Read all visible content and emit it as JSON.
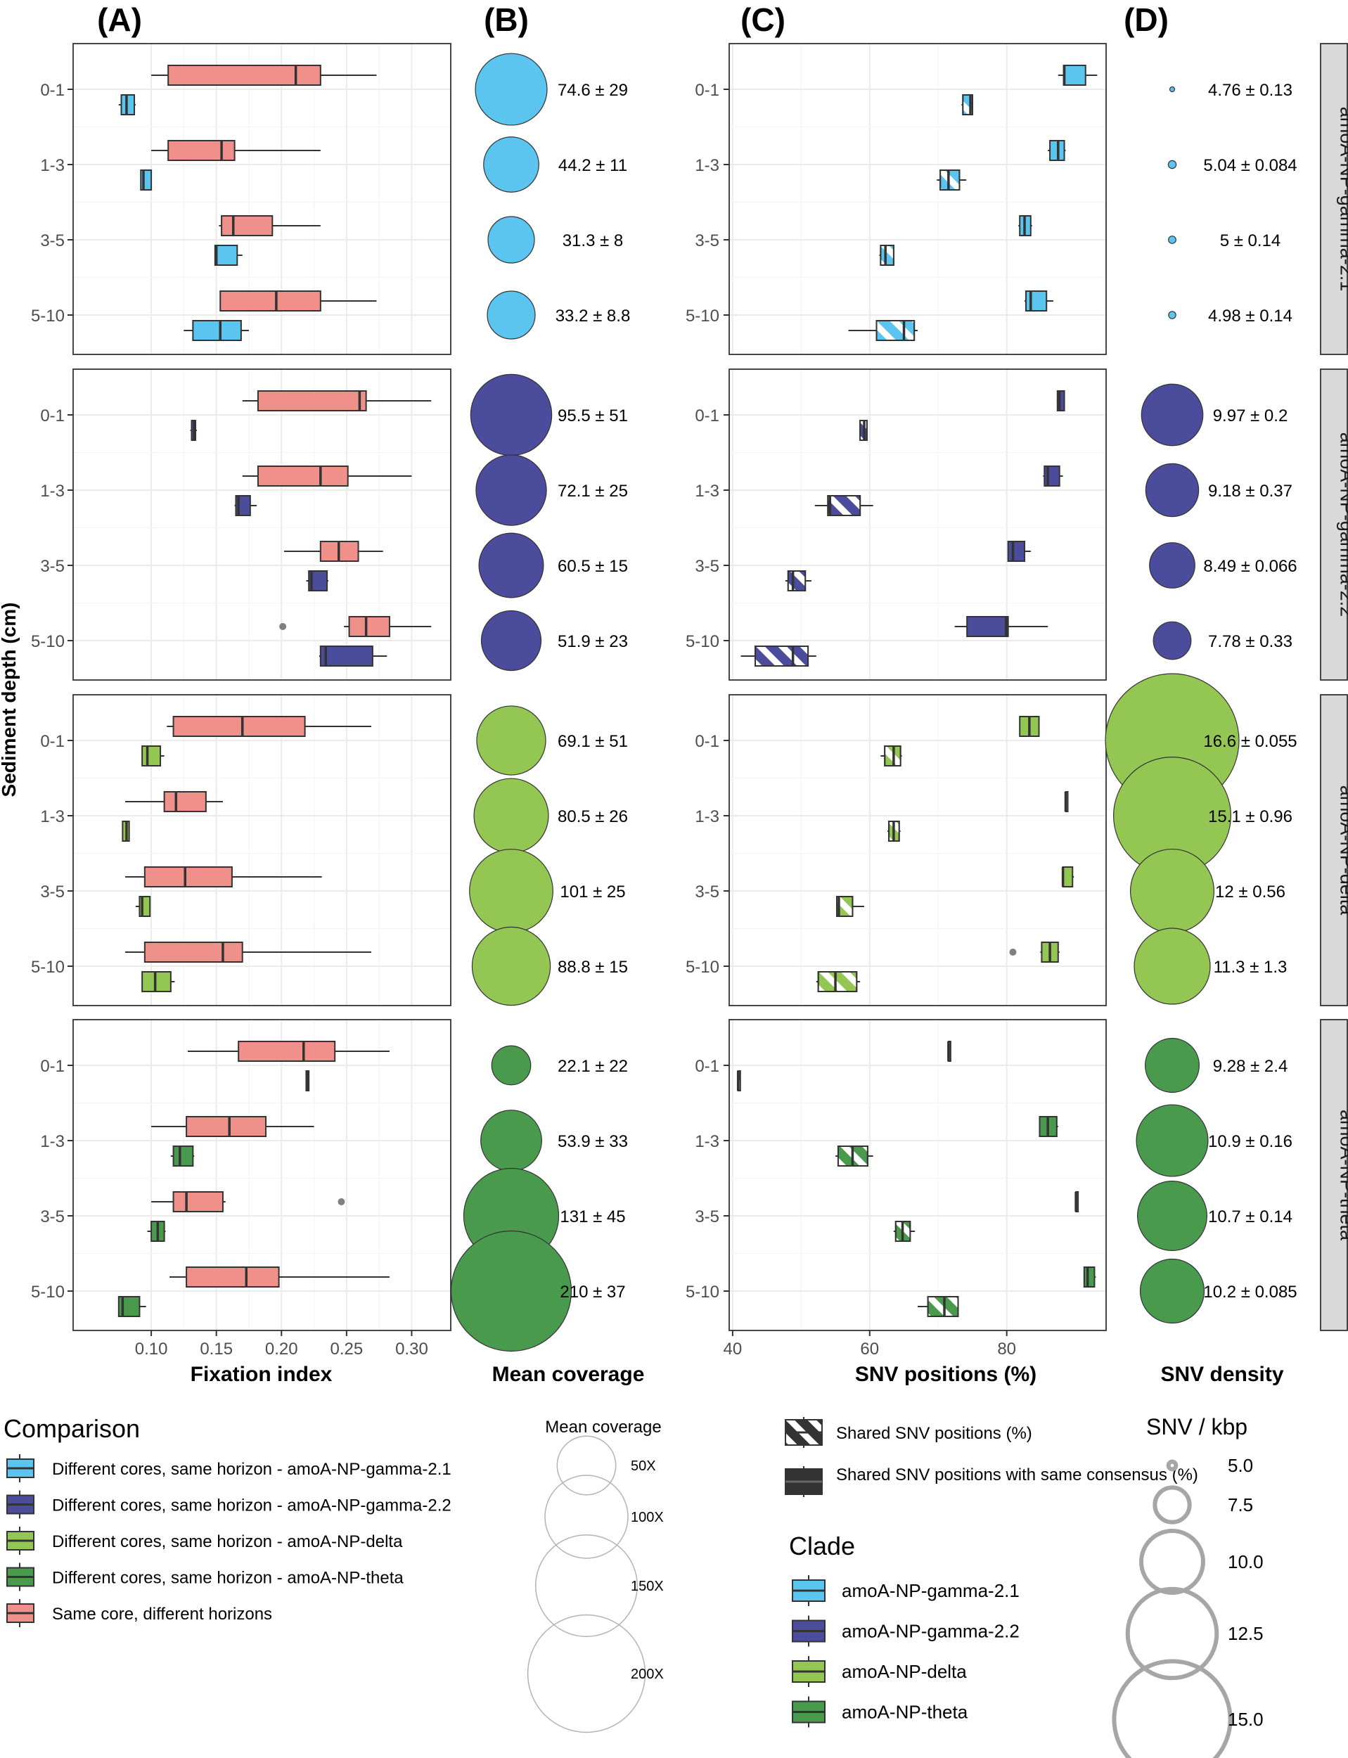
{
  "panel_titles": [
    "(A)",
    "(B)",
    "(C)",
    "(D)"
  ],
  "y_axis_label": "Sediment depth (cm)",
  "depths": [
    "0-1",
    "1-3",
    "3-5",
    "5-10"
  ],
  "clades": [
    {
      "name": "amoA-NP-gamma-2.1",
      "color": "#5BC4EF"
    },
    {
      "name": "amoA-NP-gamma-2.2",
      "color": "#4C4C9C"
    },
    {
      "name": "amoA-NP-delta",
      "color": "#94C653"
    },
    {
      "name": "amoA-NP-theta",
      "color": "#4A9A4E"
    }
  ],
  "same_core_color": "#F0908A",
  "chart_data": [
    {
      "panel": "(A)",
      "type": "box",
      "xlabel": "Fixation index",
      "xlim": [
        0.04,
        0.33
      ],
      "xticks": [
        0.1,
        0.15,
        0.2,
        0.25,
        0.3
      ],
      "xtick_labels": [
        "0.10",
        "0.15",
        "0.20",
        "0.25",
        "0.30"
      ],
      "series_names": [
        "Same core, different horizons",
        "Different cores, same horizon"
      ],
      "facets": [
        {
          "clade": "amoA-NP-gamma-2.1",
          "rows": [
            {
              "depth": "0-1",
              "same": [
                0.1,
                0.113,
                0.211,
                0.23,
                0.273
              ],
              "diff": [
                0.075,
                0.077,
                0.081,
                0.087,
                0.088
              ]
            },
            {
              "depth": "1-3",
              "same": [
                0.1,
                0.113,
                0.154,
                0.164,
                0.23
              ],
              "diff": [
                0.092,
                0.092,
                0.094,
                0.1,
                0.1
              ]
            },
            {
              "depth": "3-5",
              "same": [
                0.152,
                0.154,
                0.163,
                0.193,
                0.23
              ],
              "diff": [
                0.149,
                0.149,
                0.15,
                0.166,
                0.17
              ]
            },
            {
              "depth": "5-10",
              "same": [
                0.153,
                0.153,
                0.196,
                0.23,
                0.273
              ],
              "diff": [
                0.125,
                0.132,
                0.153,
                0.169,
                0.175
              ]
            }
          ]
        },
        {
          "clade": "amoA-NP-gamma-2.2",
          "rows": [
            {
              "depth": "0-1",
              "same": [
                0.17,
                0.182,
                0.26,
                0.265,
                0.315
              ],
              "diff": [
                0.13,
                0.131,
                0.133,
                0.134,
                0.135
              ]
            },
            {
              "depth": "1-3",
              "same": [
                0.17,
                0.182,
                0.23,
                0.251,
                0.3
              ],
              "diff": [
                0.164,
                0.165,
                0.167,
                0.176,
                0.181
              ]
            },
            {
              "depth": "3-5",
              "same": [
                0.202,
                0.23,
                0.244,
                0.259,
                0.278
              ],
              "diff": [
                0.219,
                0.221,
                0.223,
                0.235,
                0.236
              ]
            },
            {
              "depth": "5-10",
              "same": [
                0.248,
                0.252,
                0.265,
                0.283,
                0.315
              ],
              "diff": [
                0.229,
                0.23,
                0.234,
                0.27,
                0.281
              ]
            }
          ],
          "outliers": [
            {
              "depth": "5-10",
              "series": "same",
              "value": 0.201
            }
          ]
        },
        {
          "clade": "amoA-NP-delta",
          "rows": [
            {
              "depth": "0-1",
              "same": [
                0.112,
                0.117,
                0.17,
                0.218,
                0.269
              ],
              "diff": [
                0.093,
                0.093,
                0.097,
                0.107,
                0.11
              ]
            },
            {
              "depth": "1-3",
              "same": [
                0.08,
                0.11,
                0.119,
                0.142,
                0.155
              ],
              "diff": [
                0.078,
                0.078,
                0.081,
                0.083,
                0.083
              ]
            },
            {
              "depth": "3-5",
              "same": [
                0.08,
                0.095,
                0.126,
                0.162,
                0.231
              ],
              "diff": [
                0.088,
                0.091,
                0.093,
                0.099,
                0.099
              ]
            },
            {
              "depth": "5-10",
              "same": [
                0.08,
                0.095,
                0.155,
                0.17,
                0.269
              ],
              "diff": [
                0.093,
                0.093,
                0.103,
                0.115,
                0.118
              ]
            }
          ]
        },
        {
          "clade": "amoA-NP-theta",
          "rows": [
            {
              "depth": "0-1",
              "same": [
                0.128,
                0.167,
                0.217,
                0.241,
                0.283
              ],
              "diff": [
                0.219,
                0.219,
                0.22,
                0.221,
                0.221
              ]
            },
            {
              "depth": "1-3",
              "same": [
                0.1,
                0.127,
                0.16,
                0.188,
                0.225
              ],
              "diff": [
                0.115,
                0.117,
                0.122,
                0.132,
                0.133
              ]
            },
            {
              "depth": "3-5",
              "same": [
                0.1,
                0.117,
                0.127,
                0.155,
                0.157
              ],
              "diff": [
                0.097,
                0.1,
                0.105,
                0.11,
                0.111
              ]
            },
            {
              "depth": "5-10",
              "same": [
                0.114,
                0.127,
                0.173,
                0.198,
                0.283
              ],
              "diff": [
                0.075,
                0.075,
                0.078,
                0.091,
                0.096
              ]
            }
          ],
          "outliers": [
            {
              "depth": "3-5",
              "series": "same",
              "value": 0.246
            }
          ]
        }
      ]
    },
    {
      "panel": "(B)",
      "type": "bubble",
      "xlabel": "Mean coverage",
      "facets": [
        {
          "clade": "amoA-NP-gamma-2.1",
          "values": [
            74.6,
            44.2,
            31.3,
            33.2
          ],
          "labels": [
            "74.6 ± 29",
            "44.2 ± 11",
            "31.3 ± 8",
            "33.2 ± 8.8"
          ]
        },
        {
          "clade": "amoA-NP-gamma-2.2",
          "values": [
            95.5,
            72.1,
            60.5,
            51.9
          ],
          "labels": [
            "95.5 ± 51",
            "72.1 ± 25",
            "60.5 ± 15",
            "51.9 ± 23"
          ]
        },
        {
          "clade": "amoA-NP-delta",
          "values": [
            69.1,
            80.5,
            101,
            88.8
          ],
          "labels": [
            "69.1 ± 51",
            "80.5 ± 26",
            "101 ± 25",
            "88.8 ± 15"
          ]
        },
        {
          "clade": "amoA-NP-theta",
          "values": [
            22.1,
            53.9,
            131,
            210
          ],
          "labels": [
            "22.1 ± 22",
            "53.9 ± 33",
            "131 ± 45",
            "210 ± 37"
          ]
        }
      ]
    },
    {
      "panel": "(C)",
      "type": "box",
      "xlabel": "SNV positions (%)",
      "xlim": [
        39.5,
        94.5
      ],
      "xticks": [
        40,
        60,
        80
      ],
      "xtick_labels": [
        "40",
        "60",
        "80"
      ],
      "series_names": [
        "Shared SNV positions with same consensus (%)",
        "Shared SNV positions (%)"
      ],
      "facets": [
        {
          "clade": "amoA-NP-gamma-2.1",
          "rows": [
            {
              "depth": "0-1",
              "consensus": [
                87.5,
                88.3,
                88.4,
                91.5,
                93.2
              ],
              "shared": [
                73.4,
                73.6,
                74.7,
                75.0,
                75.0
              ]
            },
            {
              "depth": "1-3",
              "consensus": [
                86.0,
                86.3,
                87.5,
                88.4,
                88.6
              ],
              "shared": [
                69.8,
                70.3,
                71.5,
                73.1,
                74.1
              ]
            },
            {
              "depth": "3-5",
              "consensus": [
                81.7,
                81.9,
                82.6,
                83.5,
                83.7
              ],
              "shared": [
                61.4,
                61.6,
                62.3,
                63.5,
                63.5
              ]
            },
            {
              "depth": "5-10",
              "consensus": [
                82.6,
                82.8,
                83.5,
                85.8,
                86.8
              ],
              "shared": [
                56.9,
                61.0,
                65.0,
                66.5,
                67.0
              ]
            }
          ]
        },
        {
          "clade": "amoA-NP-gamma-2.2",
          "rows": [
            {
              "depth": "0-1",
              "consensus": [
                87.3,
                87.4,
                87.7,
                88.4,
                88.4
              ],
              "shared": [
                58.6,
                58.6,
                59.2,
                59.6,
                59.6
              ]
            },
            {
              "depth": "1-3",
              "consensus": [
                85.3,
                85.5,
                86.0,
                87.7,
                88.2
              ],
              "shared": [
                52.0,
                53.9,
                54.2,
                58.6,
                60.5
              ]
            },
            {
              "depth": "3-5",
              "consensus": [
                80.2,
                80.2,
                80.9,
                82.6,
                83.5
              ],
              "shared": [
                47.7,
                48.1,
                48.8,
                50.6,
                51.5
              ]
            },
            {
              "depth": "5-10",
              "consensus": [
                72.4,
                74.2,
                79.9,
                80.2,
                86.0
              ],
              "shared": [
                41.2,
                43.3,
                48.8,
                51.0,
                52.2
              ]
            }
          ]
        },
        {
          "clade": "amoA-NP-delta",
          "rows": [
            {
              "depth": "0-1",
              "consensus": [
                81.9,
                81.9,
                83.3,
                84.7,
                84.7
              ],
              "shared": [
                61.6,
                62.2,
                63.5,
                64.5,
                64.7
              ]
            },
            {
              "depth": "1-3",
              "consensus": [
                88.6,
                88.6,
                88.6,
                88.6,
                88.6
              ],
              "shared": [
                62.6,
                62.8,
                63.5,
                64.3,
                64.5
              ]
            },
            {
              "depth": "3-5",
              "consensus": [
                88.2,
                88.2,
                88.2,
                89.6,
                89.8
              ],
              "shared": [
                55.2,
                55.2,
                55.5,
                57.5,
                59.2
              ]
            },
            {
              "depth": "5-10",
              "consensus": [
                84.9,
                85.1,
                86.3,
                87.5,
                87.7
              ],
              "shared": [
                52.2,
                52.5,
                55.0,
                58.1,
                58.6
              ]
            }
          ],
          "outliers": [
            {
              "depth": "5-10",
              "series": "consensus",
              "value": 80.9
            }
          ]
        },
        {
          "clade": "amoA-NP-theta",
          "rows": [
            {
              "depth": "0-1",
              "consensus": [
                71.5,
                71.5,
                71.5,
                71.5,
                71.5
              ],
              "shared": [
                40.8,
                40.8,
                40.8,
                40.8,
                40.8
              ]
            },
            {
              "depth": "1-3",
              "consensus": [
                84.7,
                84.8,
                86.0,
                87.3,
                87.5
              ],
              "shared": [
                55.0,
                55.4,
                57.5,
                59.7,
                60.5
              ]
            },
            {
              "depth": "3-5",
              "consensus": [
                90.1,
                90.1,
                90.1,
                90.1,
                90.1
              ],
              "shared": [
                63.5,
                63.8,
                64.8,
                65.9,
                66.6
              ]
            },
            {
              "depth": "5-10",
              "consensus": [
                91.2,
                91.3,
                91.8,
                92.8,
                93.0
              ],
              "shared": [
                67.0,
                68.5,
                70.9,
                72.9,
                72.9
              ]
            }
          ]
        }
      ]
    },
    {
      "panel": "(D)",
      "type": "bubble",
      "xlabel": "SNV density",
      "facets": [
        {
          "clade": "amoA-NP-gamma-2.1",
          "values": [
            4.76,
            5.04,
            5.0,
            4.98
          ],
          "labels": [
            "4.76 ± 0.13",
            "5.04 ± 0.084",
            "5 ± 0.14",
            "4.98 ± 0.14"
          ]
        },
        {
          "clade": "amoA-NP-gamma-2.2",
          "values": [
            9.97,
            9.18,
            8.49,
            7.78
          ],
          "labels": [
            "9.97 ± 0.2",
            "9.18 ± 0.37",
            "8.49 ± 0.066",
            "7.78 ± 0.33"
          ]
        },
        {
          "clade": "amoA-NP-delta",
          "values": [
            16.6,
            15.1,
            12.0,
            11.3
          ],
          "labels": [
            "16.6 ± 0.055",
            "15.1 ± 0.96",
            "12 ± 0.56",
            "11.3 ± 1.3"
          ]
        },
        {
          "clade": "amoA-NP-theta",
          "values": [
            9.28,
            10.9,
            10.7,
            10.2
          ],
          "labels": [
            "9.28 ± 2.4",
            "10.9 ± 0.16",
            "10.7 ± 0.14",
            "10.2 ± 0.085"
          ]
        }
      ]
    }
  ],
  "legends": {
    "comparison": {
      "title": "Comparison",
      "items": [
        {
          "label": "Different cores, same horizon - amoA-NP-gamma-2.1",
          "color": "#5BC4EF"
        },
        {
          "label": "Different cores, same horizon - amoA-NP-gamma-2.2",
          "color": "#4C4C9C"
        },
        {
          "label": "Different cores, same horizon - amoA-NP-delta",
          "color": "#94C653"
        },
        {
          "label": "Different cores, same horizon - amoA-NP-theta",
          "color": "#4A9A4E"
        },
        {
          "label": "Same core, different horizons",
          "color": "#F0908A"
        }
      ]
    },
    "mean_coverage": {
      "title": "Mean coverage",
      "items": [
        {
          "value": 50,
          "label": "50X"
        },
        {
          "value": 100,
          "label": "100X"
        },
        {
          "value": 150,
          "label": "150X"
        },
        {
          "value": 200,
          "label": "200X"
        }
      ]
    },
    "snv_type": {
      "items": [
        {
          "label": "Shared SNV positions (%)",
          "pattern": "hatched"
        },
        {
          "label": "Shared SNV positions with same consensus (%)",
          "pattern": "solid"
        }
      ]
    },
    "clade": {
      "title": "Clade",
      "items": [
        {
          "label": "amoA-NP-gamma-2.1",
          "color": "#5BC4EF"
        },
        {
          "label": "amoA-NP-gamma-2.2",
          "color": "#4C4C9C"
        },
        {
          "label": "amoA-NP-delta",
          "color": "#94C653"
        },
        {
          "label": "amoA-NP-theta",
          "color": "#4A9A4E"
        }
      ]
    },
    "snv_density": {
      "title": "SNV / kbp",
      "items": [
        {
          "value": 5.0,
          "label": "5.0"
        },
        {
          "value": 7.5,
          "label": "7.5"
        },
        {
          "value": 10.0,
          "label": "10.0"
        },
        {
          "value": 12.5,
          "label": "12.5"
        },
        {
          "value": 15.0,
          "label": "15.0"
        }
      ]
    }
  }
}
